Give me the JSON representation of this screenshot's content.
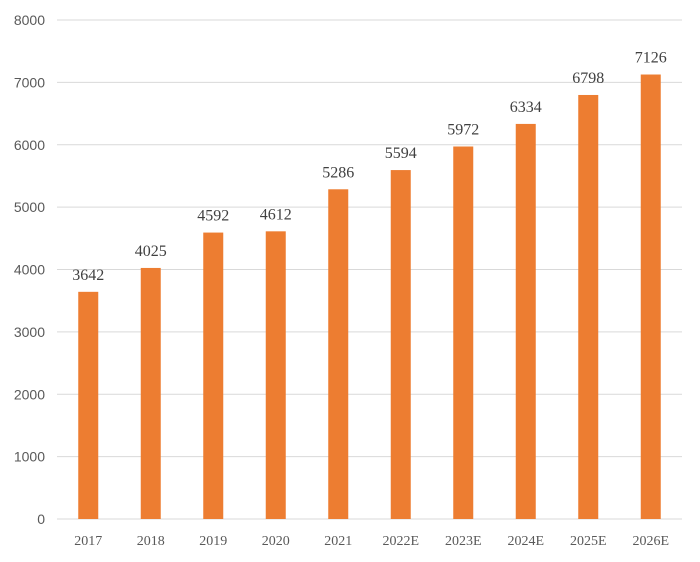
{
  "chart_data": {
    "type": "bar",
    "categories": [
      "2017",
      "2018",
      "2019",
      "2020",
      "2021",
      "2022E",
      "2023E",
      "2024E",
      "2025E",
      "2026E"
    ],
    "values": [
      3642,
      4025,
      4592,
      4612,
      5286,
      5594,
      5972,
      6334,
      6798,
      7126
    ],
    "data_labels": [
      "3642",
      "4025",
      "4592",
      "4612",
      "5286",
      "5594",
      "5972",
      "6334",
      "6798",
      "7126"
    ],
    "y_ticks": [
      "0",
      "1000",
      "2000",
      "3000",
      "4000",
      "5000",
      "6000",
      "7000",
      "8000"
    ],
    "ylim": [
      0,
      8000
    ],
    "grid": true,
    "legend": "none",
    "colors": {
      "bar": "#ed7d31",
      "grid": "#d9d9d9",
      "tick_text": "#595959",
      "label_text": "#404040"
    }
  }
}
